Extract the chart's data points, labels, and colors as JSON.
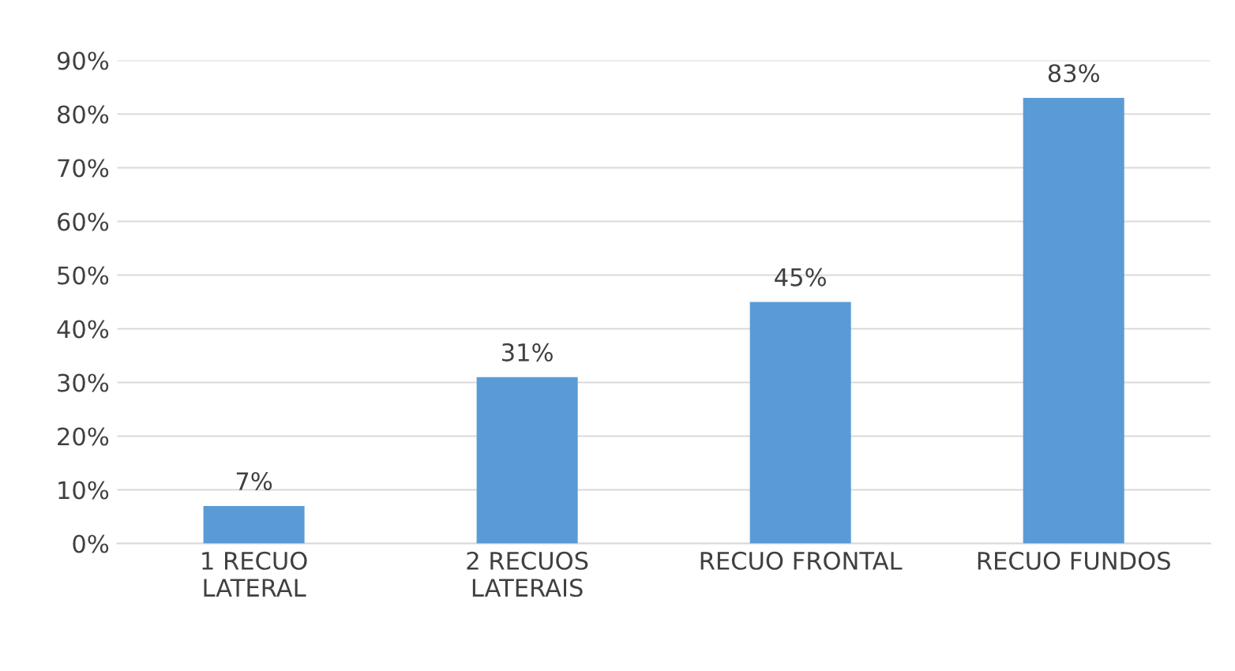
{
  "chart_data": {
    "type": "bar",
    "categories": [
      "1 RECUO\nLATERAL",
      "2 RECUOS\nLATERAIS",
      "RECUO FRONTAL",
      "RECUO FUNDOS"
    ],
    "values": [
      7,
      31,
      45,
      83
    ],
    "value_labels": [
      "7%",
      "31%",
      "45%",
      "83%"
    ],
    "color": "#5b9bd5",
    "ylim": [
      0,
      90
    ],
    "yticks": [
      {
        "value": 0,
        "label": "0%"
      },
      {
        "value": 10,
        "label": "10%"
      },
      {
        "value": 20,
        "label": "20%"
      },
      {
        "value": 30,
        "label": "30%"
      },
      {
        "value": 40,
        "label": "40%"
      },
      {
        "value": 50,
        "label": "50%"
      },
      {
        "value": 60,
        "label": "60%"
      },
      {
        "value": 70,
        "label": "70%"
      },
      {
        "value": 80,
        "label": "80%"
      },
      {
        "value": 90,
        "label": "90%"
      }
    ],
    "grid": "y",
    "legend": false
  }
}
